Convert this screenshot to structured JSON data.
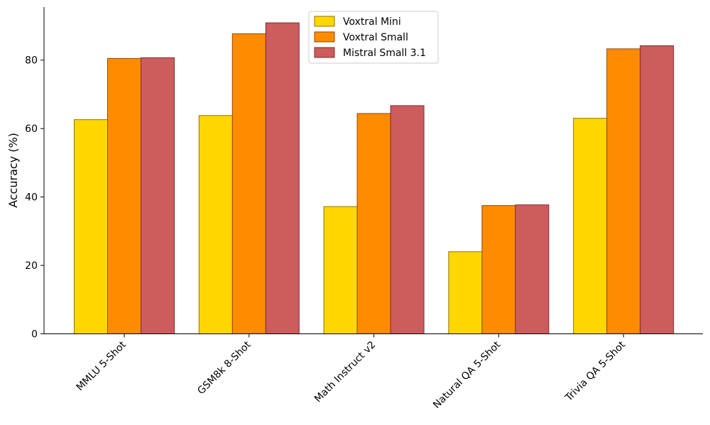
{
  "chart_data": {
    "type": "bar",
    "categories": [
      "MMLU 5-Shot",
      "GSM8k 8-Shot",
      "Math Instruct v2",
      "Natural QA 5-Shot",
      "Trivia QA 5-Shot"
    ],
    "series": [
      {
        "name": "Voxtral Mini",
        "values": [
          62.6,
          63.8,
          37.2,
          24.0,
          63.0
        ],
        "color": "#FFD700",
        "edge": "#8B7500"
      },
      {
        "name": "Voxtral Small",
        "values": [
          80.5,
          87.7,
          64.4,
          37.5,
          83.3
        ],
        "color": "#FF8C00",
        "edge": "#8B4A00"
      },
      {
        "name": "Mistral Small 3.1",
        "values": [
          80.7,
          90.9,
          66.7,
          37.7,
          84.2
        ],
        "color": "#CD5C5C",
        "edge": "#7A2E2E"
      }
    ],
    "title": "",
    "xlabel": "",
    "ylabel": "Accuracy (%)",
    "ylim": [
      0,
      95.5
    ],
    "yticks": [
      0,
      20,
      40,
      60,
      80
    ],
    "grid": false,
    "legend_position": "top-center"
  }
}
